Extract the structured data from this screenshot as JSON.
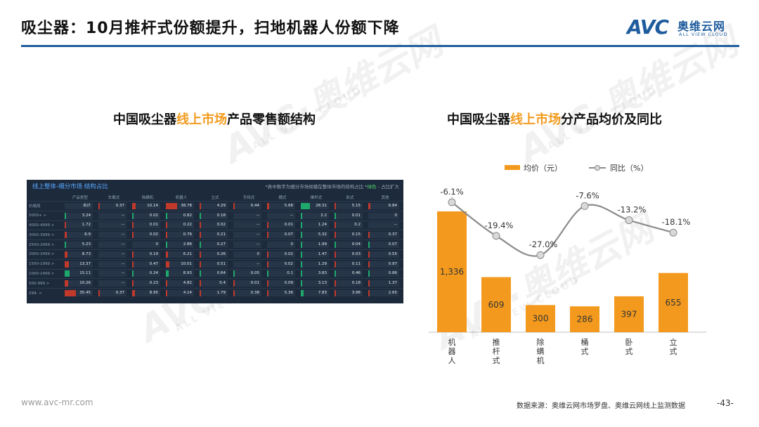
{
  "header": {
    "title": "吸尘器：10月推杆式份额提升，扫地机器人份额下降",
    "logo_mark": "AVC",
    "logo_cn": "奥维云网",
    "logo_en": "ALL VIEW CLOUD",
    "brand_color": "#1f5c9e"
  },
  "watermark": {
    "mark": "AVC·奥维云网",
    "sub": "ALL VIEW CLOUD"
  },
  "left": {
    "title_pre": "中国吸尘器",
    "title_hl": "线上市场",
    "title_post": "产品零售额结构",
    "table": {
      "title": "线上整体-细分市场 结构占比",
      "note_pre": "*表中数字为细分市场规模在整体市场的结构占比 *",
      "note_green": "绿色",
      "note_post": " - 占比扩大",
      "columns": [
        "",
        "产品类型",
        "车载式",
        "除螨机",
        "机器人",
        "立式",
        "手持式",
        "桶式",
        "推杆式",
        "卧式",
        "其他"
      ],
      "rows": [
        [
          "价格段",
          "合计",
          "0.37",
          "10.14",
          "38.78",
          "4.29",
          "0.44",
          "5.68",
          "28.31",
          "5.15",
          "6.84"
        ],
        [
          "5000+ >",
          "3.24",
          "--",
          "0.02",
          "0.82",
          "0.18",
          "--",
          "--",
          "2.2",
          "0.01",
          "0"
        ],
        [
          "4000-4999 >",
          "1.72",
          "--",
          "0.01",
          "0.22",
          "0.02",
          "--",
          "0.01",
          "1.24",
          "0.2",
          "--"
        ],
        [
          "3000-3999 >",
          "6.9",
          "--",
          "0.02",
          "0.76",
          "0.21",
          "--",
          "0.07",
          "5.32",
          "0.15",
          "0.37"
        ],
        [
          "2500-2999 >",
          "5.23",
          "--",
          "0",
          "2.86",
          "0.27",
          "--",
          "0",
          "1.99",
          "0.04",
          "0.07"
        ],
        [
          "2000-2499 >",
          "8.73",
          "--",
          "0.19",
          "6.21",
          "0.26",
          "0",
          "0.02",
          "1.47",
          "0.03",
          "0.55"
        ],
        [
          "1500-1999 >",
          "13.37",
          "--",
          "0.47",
          "10.01",
          "0.51",
          "--",
          "0.02",
          "1.29",
          "0.11",
          "0.97"
        ],
        [
          "1000-1499 >",
          "15.11",
          "--",
          "0.24",
          "8.93",
          "0.64",
          "0.05",
          "0.1",
          "3.83",
          "0.46",
          "0.86"
        ],
        [
          "500-999 >",
          "10.26",
          "--",
          "0.23",
          "4.82",
          "0.4",
          "0.01",
          "0.09",
          "3.13",
          "0.18",
          "1.37"
        ],
        [
          "299- >",
          "35.45",
          "0.37",
          "8.95",
          "4.14",
          "1.79",
          "0.38",
          "5.36",
          "7.83",
          "3.96",
          "2.65"
        ]
      ],
      "accent_red": "#c0392b",
      "accent_green": "#1fa86b",
      "header_color": "#59a8ff"
    }
  },
  "right": {
    "title_pre": "中国吸尘器",
    "title_hl": "线上市场",
    "title_post": "分产品均价及同比"
  },
  "chart_data": {
    "type": "bar",
    "categories": [
      "机器人",
      "推杆式",
      "除螨机",
      "桶式",
      "卧式",
      "立式"
    ],
    "series": [
      {
        "name": "均价（元）",
        "type": "bar",
        "values": [
          1336,
          609,
          300,
          286,
          397,
          655
        ],
        "labels": [
          "1,336",
          "609",
          "300",
          "286",
          "397",
          "655"
        ],
        "color": "#f39a1e"
      },
      {
        "name": "同比（%）",
        "type": "line",
        "values": [
          -6.1,
          -19.4,
          -27.0,
          -7.6,
          -13.2,
          -18.1
        ],
        "labels": [
          "-6.1%",
          "-19.4%",
          "-27.0%",
          "-7.6%",
          "-13.2%",
          "-18.1%"
        ],
        "color": "#8c8c8c"
      }
    ],
    "legend_position": "top",
    "grid": false
  },
  "footer": {
    "url": "www.avc-mr.com",
    "source": "数据来源：奥维云网市场罗盘、奥维云网线上监测数据",
    "page": "-43-"
  },
  "colors": {
    "highlight": "#f39a1e",
    "table_bg": "#1d2a3c"
  }
}
